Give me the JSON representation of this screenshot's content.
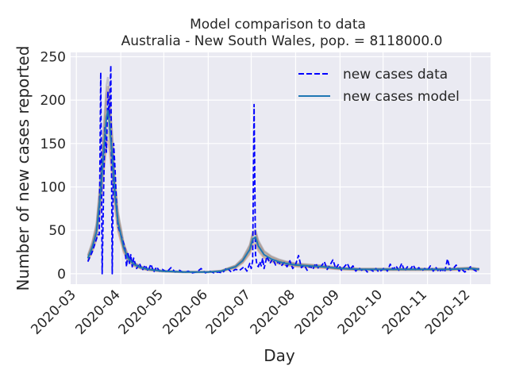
{
  "chart_data": {
    "type": "line",
    "title": "Model comparison to data",
    "subtitle": "Australia - New South Wales, pop. = 8118000.0",
    "xlabel": "Day",
    "ylabel": "Number of new cases reported",
    "x_ticks": [
      "2020-03",
      "2020-04",
      "2020-05",
      "2020-06",
      "2020-07",
      "2020-08",
      "2020-09",
      "2020-10",
      "2020-11",
      "2020-12"
    ],
    "y_ticks": [
      0,
      50,
      100,
      150,
      200,
      250
    ],
    "xlim": [
      "2020-02-26",
      "2020-12-15"
    ],
    "ylim": [
      -12,
      255
    ],
    "grid": true,
    "legend_position": "top-right",
    "series": [
      {
        "name": "new cases data",
        "style": "dashed",
        "color": "#0000ff",
        "points": [
          [
            "2020-03-09",
            14
          ],
          [
            "2020-03-12",
            25
          ],
          [
            "2020-03-14",
            35
          ],
          [
            "2020-03-16",
            45
          ],
          [
            "2020-03-17",
            45
          ],
          [
            "2020-03-18",
            232
          ],
          [
            "2020-03-19",
            0
          ],
          [
            "2020-03-20",
            95
          ],
          [
            "2020-03-21",
            170
          ],
          [
            "2020-03-22",
            140
          ],
          [
            "2020-03-23",
            210
          ],
          [
            "2020-03-24",
            180
          ],
          [
            "2020-03-25",
            240
          ],
          [
            "2020-03-26",
            0
          ],
          [
            "2020-03-27",
            150
          ],
          [
            "2020-03-28",
            120
          ],
          [
            "2020-03-29",
            80
          ],
          [
            "2020-03-30",
            55
          ],
          [
            "2020-03-31",
            50
          ],
          [
            "2020-04-01",
            45
          ],
          [
            "2020-04-02",
            40
          ],
          [
            "2020-04-03",
            35
          ],
          [
            "2020-04-04",
            28
          ],
          [
            "2020-04-05",
            8
          ],
          [
            "2020-04-06",
            25
          ],
          [
            "2020-04-07",
            12
          ],
          [
            "2020-04-08",
            22
          ],
          [
            "2020-04-09",
            8
          ],
          [
            "2020-04-10",
            18
          ],
          [
            "2020-04-12",
            6
          ],
          [
            "2020-04-14",
            12
          ],
          [
            "2020-04-16",
            4
          ],
          [
            "2020-04-18",
            10
          ],
          [
            "2020-04-20",
            3
          ],
          [
            "2020-04-22",
            11
          ],
          [
            "2020-04-24",
            2
          ],
          [
            "2020-04-26",
            8
          ],
          [
            "2020-04-28",
            3
          ],
          [
            "2020-04-30",
            5
          ],
          [
            "2020-05-03",
            2
          ],
          [
            "2020-05-06",
            7
          ],
          [
            "2020-05-09",
            2
          ],
          [
            "2020-05-12",
            4
          ],
          [
            "2020-05-15",
            1
          ],
          [
            "2020-05-18",
            3
          ],
          [
            "2020-05-21",
            1
          ],
          [
            "2020-05-24",
            2
          ],
          [
            "2020-05-27",
            6
          ],
          [
            "2020-05-30",
            1
          ],
          [
            "2020-06-02",
            3
          ],
          [
            "2020-06-05",
            1
          ],
          [
            "2020-06-08",
            2
          ],
          [
            "2020-06-11",
            1
          ],
          [
            "2020-06-14",
            7
          ],
          [
            "2020-06-17",
            2
          ],
          [
            "2020-06-20",
            5
          ],
          [
            "2020-06-23",
            4
          ],
          [
            "2020-06-26",
            8
          ],
          [
            "2020-06-28",
            3
          ],
          [
            "2020-06-30",
            12
          ],
          [
            "2020-07-01",
            6
          ],
          [
            "2020-07-02",
            15
          ],
          [
            "2020-07-03",
            195
          ],
          [
            "2020-07-04",
            22
          ],
          [
            "2020-07-05",
            10
          ],
          [
            "2020-07-06",
            8
          ],
          [
            "2020-07-07",
            14
          ],
          [
            "2020-07-08",
            9
          ],
          [
            "2020-07-09",
            18
          ],
          [
            "2020-07-10",
            6
          ],
          [
            "2020-07-12",
            20
          ],
          [
            "2020-07-14",
            12
          ],
          [
            "2020-07-16",
            17
          ],
          [
            "2020-07-18",
            10
          ],
          [
            "2020-07-20",
            14
          ],
          [
            "2020-07-22",
            9
          ],
          [
            "2020-07-24",
            13
          ],
          [
            "2020-07-26",
            8
          ],
          [
            "2020-07-28",
            15
          ],
          [
            "2020-07-30",
            6
          ],
          [
            "2020-08-01",
            11
          ],
          [
            "2020-08-03",
            21
          ],
          [
            "2020-08-05",
            7
          ],
          [
            "2020-08-07",
            10
          ],
          [
            "2020-08-09",
            4
          ],
          [
            "2020-08-11",
            9
          ],
          [
            "2020-08-13",
            5
          ],
          [
            "2020-08-15",
            12
          ],
          [
            "2020-08-17",
            6
          ],
          [
            "2020-08-19",
            9
          ],
          [
            "2020-08-21",
            14
          ],
          [
            "2020-08-23",
            5
          ],
          [
            "2020-08-25",
            10
          ],
          [
            "2020-08-27",
            16
          ],
          [
            "2020-08-29",
            6
          ],
          [
            "2020-08-31",
            11
          ],
          [
            "2020-09-02",
            4
          ],
          [
            "2020-09-04",
            8
          ],
          [
            "2020-09-06",
            12
          ],
          [
            "2020-09-08",
            5
          ],
          [
            "2020-09-10",
            9
          ],
          [
            "2020-09-12",
            3
          ],
          [
            "2020-09-14",
            7
          ],
          [
            "2020-09-16",
            4
          ],
          [
            "2020-09-18",
            6
          ],
          [
            "2020-09-20",
            2
          ],
          [
            "2020-09-22",
            5
          ],
          [
            "2020-09-24",
            3
          ],
          [
            "2020-09-26",
            6
          ],
          [
            "2020-09-28",
            2
          ],
          [
            "2020-09-30",
            4
          ],
          [
            "2020-10-02",
            7
          ],
          [
            "2020-10-04",
            3
          ],
          [
            "2020-10-06",
            11
          ],
          [
            "2020-10-08",
            5
          ],
          [
            "2020-10-10",
            9
          ],
          [
            "2020-10-12",
            4
          ],
          [
            "2020-10-14",
            12
          ],
          [
            "2020-10-16",
            3
          ],
          [
            "2020-10-18",
            8
          ],
          [
            "2020-10-20",
            5
          ],
          [
            "2020-10-22",
            10
          ],
          [
            "2020-10-24",
            4
          ],
          [
            "2020-10-26",
            7
          ],
          [
            "2020-10-28",
            3
          ],
          [
            "2020-10-30",
            6
          ],
          [
            "2020-11-01",
            4
          ],
          [
            "2020-11-03",
            9
          ],
          [
            "2020-11-05",
            3
          ],
          [
            "2020-11-07",
            7
          ],
          [
            "2020-11-09",
            2
          ],
          [
            "2020-11-11",
            5
          ],
          [
            "2020-11-13",
            2
          ],
          [
            "2020-11-15",
            17
          ],
          [
            "2020-11-17",
            4
          ],
          [
            "2020-11-19",
            6
          ],
          [
            "2020-11-21",
            10
          ],
          [
            "2020-11-23",
            3
          ],
          [
            "2020-11-25",
            5
          ],
          [
            "2020-11-27",
            2
          ],
          [
            "2020-11-29",
            4
          ],
          [
            "2020-12-01",
            8
          ],
          [
            "2020-12-03",
            5
          ],
          [
            "2020-12-05",
            3
          ],
          [
            "2020-12-07",
            6
          ]
        ]
      },
      {
        "name": "new cases model",
        "style": "solid",
        "color": "#1f77b4",
        "points": [
          [
            "2020-03-09",
            18
          ],
          [
            "2020-03-12",
            30
          ],
          [
            "2020-03-15",
            48
          ],
          [
            "2020-03-18",
            95
          ],
          [
            "2020-03-20",
            140
          ],
          [
            "2020-03-22",
            180
          ],
          [
            "2020-03-23",
            188
          ],
          [
            "2020-03-24",
            175
          ],
          [
            "2020-03-26",
            135
          ],
          [
            "2020-03-28",
            90
          ],
          [
            "2020-03-30",
            60
          ],
          [
            "2020-04-01",
            45
          ],
          [
            "2020-04-03",
            30
          ],
          [
            "2020-04-06",
            18
          ],
          [
            "2020-04-10",
            11
          ],
          [
            "2020-04-15",
            7
          ],
          [
            "2020-04-20",
            5
          ],
          [
            "2020-04-30",
            3
          ],
          [
            "2020-05-15",
            2
          ],
          [
            "2020-06-01",
            2
          ],
          [
            "2020-06-10",
            3
          ],
          [
            "2020-06-20",
            8
          ],
          [
            "2020-06-25",
            15
          ],
          [
            "2020-06-30",
            28
          ],
          [
            "2020-07-02",
            40
          ],
          [
            "2020-07-04",
            42
          ],
          [
            "2020-07-06",
            32
          ],
          [
            "2020-07-10",
            22
          ],
          [
            "2020-07-15",
            17
          ],
          [
            "2020-07-20",
            14
          ],
          [
            "2020-07-25",
            12
          ],
          [
            "2020-08-01",
            10
          ],
          [
            "2020-08-10",
            9
          ],
          [
            "2020-08-20",
            8
          ],
          [
            "2020-09-01",
            6
          ],
          [
            "2020-09-15",
            5
          ],
          [
            "2020-10-01",
            5
          ],
          [
            "2020-10-15",
            5
          ],
          [
            "2020-11-01",
            5
          ],
          [
            "2020-11-15",
            5
          ],
          [
            "2020-12-01",
            6
          ],
          [
            "2020-12-07",
            5
          ]
        ]
      }
    ]
  }
}
